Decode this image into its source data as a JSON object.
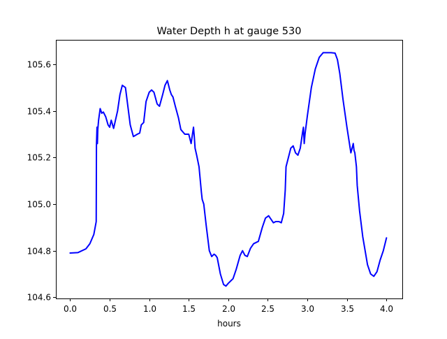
{
  "chart_data": {
    "type": "line",
    "title": "Water Depth h at gauge 530",
    "xlabel": "hours",
    "ylabel": "",
    "xlim": [
      -0.18,
      4.2
    ],
    "ylim": [
      104.595,
      105.705
    ],
    "xticks": [
      0.0,
      0.5,
      1.0,
      1.5,
      2.0,
      2.5,
      3.0,
      3.5,
      4.0
    ],
    "xtick_labels": [
      "0.0",
      "0.5",
      "1.0",
      "1.5",
      "2.0",
      "2.5",
      "3.0",
      "3.5",
      "4.0"
    ],
    "yticks": [
      104.6,
      104.8,
      105.0,
      105.2,
      105.4,
      105.6
    ],
    "ytick_labels": [
      "104.6",
      "104.8",
      "105.0",
      "105.2",
      "105.4",
      "105.6"
    ],
    "grid": false,
    "legend": "none",
    "series": [
      {
        "color": "#0000ff",
        "x": [
          0.0,
          0.1,
          0.2,
          0.25,
          0.3,
          0.33,
          0.333,
          0.34,
          0.345,
          0.35,
          0.36,
          0.38,
          0.4,
          0.42,
          0.45,
          0.48,
          0.5,
          0.52,
          0.55,
          0.57,
          0.6,
          0.63,
          0.66,
          0.7,
          0.73,
          0.76,
          0.8,
          0.85,
          0.88,
          0.9,
          0.93,
          0.96,
          1.0,
          1.03,
          1.06,
          1.1,
          1.13,
          1.17,
          1.2,
          1.23,
          1.26,
          1.28,
          1.3,
          1.33,
          1.37,
          1.4,
          1.45,
          1.5,
          1.53,
          1.56,
          1.57,
          1.58,
          1.6,
          1.63,
          1.66,
          1.67,
          1.69,
          1.72,
          1.76,
          1.79,
          1.82,
          1.84,
          1.86,
          1.9,
          1.94,
          1.97,
          2.0,
          2.03,
          2.06,
          2.1,
          2.15,
          2.18,
          2.21,
          2.24,
          2.28,
          2.32,
          2.38,
          2.43,
          2.47,
          2.51,
          2.54,
          2.57,
          2.6,
          2.64,
          2.67,
          2.7,
          2.72,
          2.73,
          2.76,
          2.79,
          2.82,
          2.85,
          2.88,
          2.91,
          2.94,
          2.95,
          2.96,
          2.97,
          3.0,
          3.05,
          3.1,
          3.15,
          3.2,
          3.25,
          3.3,
          3.35,
          3.38,
          3.41,
          3.45,
          3.5,
          3.55,
          3.58,
          3.59,
          3.6,
          3.62,
          3.63,
          3.66,
          3.7,
          3.73,
          3.76,
          3.8,
          3.84,
          3.88,
          3.92,
          3.96,
          4.0
        ],
        "y": [
          104.79,
          104.792,
          104.808,
          104.83,
          104.87,
          104.925,
          105.25,
          105.33,
          105.26,
          105.32,
          105.36,
          105.41,
          105.39,
          105.395,
          105.375,
          105.34,
          105.33,
          105.36,
          105.325,
          105.355,
          105.4,
          105.47,
          105.51,
          105.5,
          105.42,
          105.34,
          105.29,
          105.3,
          105.305,
          105.34,
          105.35,
          105.44,
          105.48,
          105.49,
          105.48,
          105.43,
          105.42,
          105.47,
          105.51,
          105.53,
          105.49,
          105.47,
          105.46,
          105.42,
          105.37,
          105.32,
          105.3,
          105.3,
          105.26,
          105.33,
          105.29,
          105.24,
          105.21,
          105.16,
          105.05,
          105.02,
          105.0,
          104.91,
          104.8,
          104.775,
          104.785,
          104.78,
          104.77,
          104.7,
          104.655,
          104.648,
          104.66,
          104.67,
          104.68,
          104.72,
          104.78,
          104.8,
          104.78,
          104.775,
          104.81,
          104.83,
          104.84,
          104.9,
          104.94,
          104.95,
          104.935,
          104.92,
          104.925,
          104.925,
          104.92,
          104.96,
          105.06,
          105.16,
          105.2,
          105.24,
          105.25,
          105.22,
          105.21,
          105.24,
          105.31,
          105.33,
          105.26,
          105.3,
          105.38,
          105.5,
          105.58,
          105.63,
          105.65,
          105.65,
          105.65,
          105.648,
          105.62,
          105.56,
          105.45,
          105.33,
          105.22,
          105.26,
          105.23,
          105.22,
          105.16,
          105.08,
          104.97,
          104.86,
          104.8,
          104.74,
          104.7,
          104.69,
          104.71,
          104.76,
          104.8,
          104.855
        ]
      }
    ]
  }
}
